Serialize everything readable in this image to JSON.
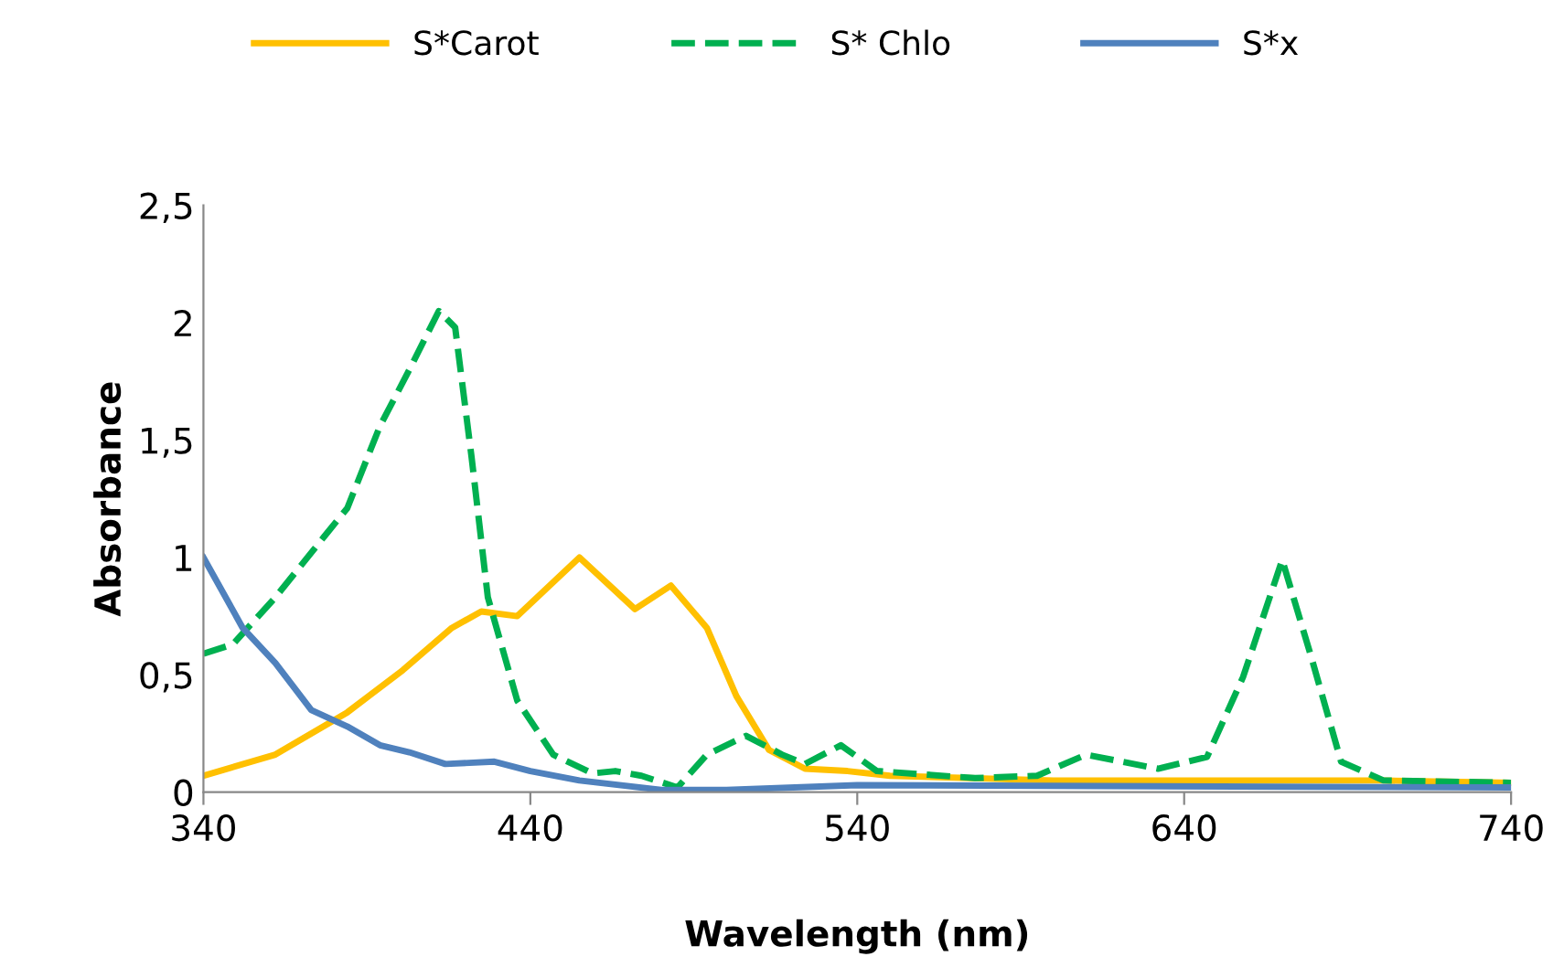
{
  "chart_data": {
    "type": "line",
    "xlabel": "Wavelength (nm)",
    "ylabel": "Absorbance",
    "xlim": [
      340,
      740
    ],
    "xticks": [
      340,
      440,
      540,
      640,
      740
    ],
    "ylim": [
      0,
      2.5
    ],
    "yticks": [
      0,
      {
        "value": 0.5,
        "label": "0,5"
      },
      1,
      {
        "value": 1.5,
        "label": "1,5"
      },
      2,
      {
        "value": 2.5,
        "label": "2,5"
      }
    ],
    "grid": false,
    "legend": "top",
    "marker": "none",
    "series": [
      {
        "name": "S*Carot",
        "color": "#ffc000",
        "line_style": "solid",
        "x": [
          340,
          362,
          384,
          401,
          416,
          425,
          436,
          455,
          472,
          483,
          494,
          503,
          513,
          524,
          537,
          550,
          600,
          700,
          740
        ],
        "values": [
          0.07,
          0.16,
          0.34,
          0.52,
          0.7,
          0.77,
          0.75,
          1.0,
          0.78,
          0.88,
          0.7,
          0.41,
          0.18,
          0.1,
          0.09,
          0.07,
          0.05,
          0.05,
          0.04
        ]
      },
      {
        "name": "S* Chlo",
        "color": "#00b050",
        "line_style": "dashed",
        "x": [
          340,
          349,
          362,
          377,
          384,
          394,
          403,
          412,
          417,
          422,
          427,
          436,
          447,
          459,
          466,
          474,
          485,
          494,
          506,
          517,
          524,
          535,
          546,
          576,
          595,
          610,
          632,
          647,
          658,
          670,
          679,
          688,
          701,
          740
        ],
        "values": [
          0.59,
          0.63,
          0.83,
          1.09,
          1.21,
          1.56,
          1.8,
          2.05,
          1.98,
          1.43,
          0.83,
          0.39,
          0.16,
          0.08,
          0.09,
          0.07,
          0.02,
          0.16,
          0.24,
          0.16,
          0.12,
          0.2,
          0.09,
          0.06,
          0.07,
          0.16,
          0.1,
          0.15,
          0.49,
          0.99,
          0.57,
          0.13,
          0.05,
          0.04
        ]
      },
      {
        "name": "S*x",
        "color": "#4f81bd",
        "line_style": "solid",
        "x": [
          340,
          352,
          362,
          373,
          384,
          394,
          403,
          414,
          429,
          440,
          455,
          480,
          500,
          540,
          740
        ],
        "values": [
          1.0,
          0.7,
          0.55,
          0.35,
          0.28,
          0.2,
          0.17,
          0.12,
          0.13,
          0.09,
          0.05,
          0.01,
          0.01,
          0.03,
          0.02
        ]
      }
    ]
  }
}
